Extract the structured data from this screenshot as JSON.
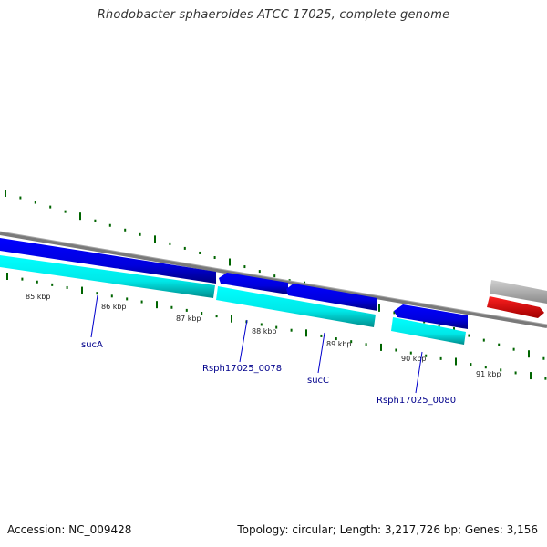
{
  "title": "Rhodobacter sphaeroides ATCC 17025, complete genome",
  "footer": {
    "accession": "Accession: NC_009428",
    "summary": "Topology: circular; Length: 3,217,726 bp; Genes: 3,156"
  },
  "ruler_labels": [
    "85 kbp",
    "86 kbp",
    "87 kbp",
    "88 kbp",
    "89 kbp",
    "90 kbp",
    "91 kbp"
  ],
  "gene_labels": [
    "sucA",
    "Rsph17025_0078",
    "sucC",
    "Rsph17025_0080"
  ],
  "colors": {
    "backbone": "#808080",
    "cds_forward": "#0000e6",
    "gene_lane": "#00ffff",
    "tick": "#006400",
    "rna_gray": "#c0c0c0",
    "rna_red": "#ff0000",
    "label_text": "#00008b"
  }
}
